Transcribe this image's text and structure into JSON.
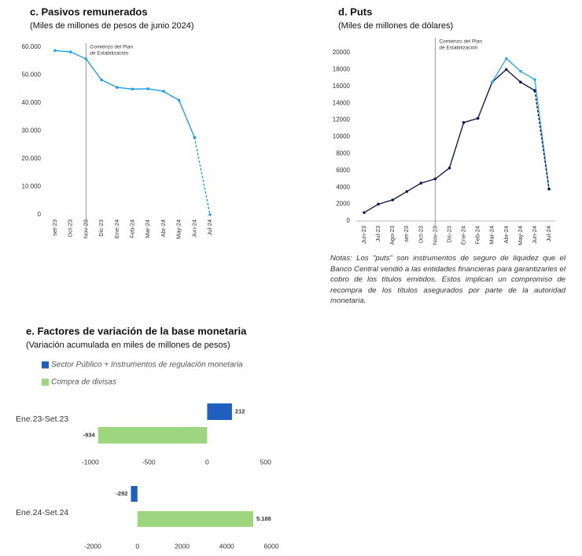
{
  "chart_data": [
    {
      "type": "line",
      "title": "c. Pasivos remunerados",
      "subtitle": "(Miles de millones de pesos de junio 2024)",
      "categories": [
        "set-23",
        "Oct-23",
        "Nov-23",
        "Dic-23",
        "Ene-24",
        "Feb-24",
        "Mar-24",
        "Abr-24",
        "May-24",
        "Jun-24",
        "Jul-24"
      ],
      "series": [
        {
          "color": "#1ea0e6",
          "values": [
            58800,
            58300,
            55800,
            48300,
            45600,
            45000,
            45100,
            44200,
            41000,
            27700,
            null
          ]
        },
        {
          "color": "#1ea0e6",
          "dashed": true,
          "values": [
            null,
            null,
            null,
            null,
            null,
            null,
            null,
            null,
            null,
            27700,
            0
          ]
        }
      ],
      "ylim": [
        0,
        60000
      ],
      "yticks": [
        {
          "value": 60000,
          "label": "60.000"
        },
        {
          "value": 50000,
          "label": "50.000"
        },
        {
          "value": 40000,
          "label": "40.000"
        },
        {
          "value": 30000,
          "label": "30.000"
        },
        {
          "value": 20000,
          "label": "20.000"
        },
        {
          "value": 10000,
          "label": "10.000"
        },
        0
      ],
      "annotation": {
        "at": "Nov-23",
        "lines": [
          "Comienzo del Plan",
          "de Estabilización"
        ]
      }
    },
    {
      "type": "line",
      "title": "d. Puts",
      "subtitle": "(Miles de millones de dólares)",
      "categories": [
        "Jun-23",
        "Jul-23",
        "Ago-23",
        "set-23",
        "Oct-23",
        "Nov-23",
        "Dic-23",
        "Ene-24",
        "Feb-24",
        "Mar-24",
        "Abr-24",
        "May-24",
        "Jun-24",
        "Jul-24"
      ],
      "series": [
        {
          "color": "#141a4a",
          "values": [
            1000,
            2000,
            2500,
            3500,
            4500,
            5000,
            6300,
            11700,
            12200,
            16500,
            18000,
            16500,
            15500,
            null
          ]
        },
        {
          "color": "#35a8e8",
          "values": [
            null,
            null,
            null,
            null,
            null,
            null,
            null,
            null,
            null,
            16500,
            19300,
            17800,
            16800,
            3800
          ]
        },
        {
          "color": "#141a4a",
          "dashed": true,
          "values": [
            null,
            null,
            null,
            null,
            null,
            null,
            null,
            null,
            null,
            null,
            null,
            null,
            15500,
            3800
          ]
        }
      ],
      "ylim": [
        0,
        20000
      ],
      "yticks": [
        20000,
        18000,
        16000,
        14000,
        12000,
        10000,
        8000,
        6000,
        4000,
        2000,
        0
      ],
      "annotation": {
        "at": "Nov-23",
        "lines": [
          "Comienzo del Plan",
          "de Estabilización"
        ]
      },
      "note": "Notas: Los \"puts\" son instrumentos de seguro de liquidez que el Banco Central vendió a las entidades financieras para garantizarles el cobro de los títulos emitidos. Estos implican un compromiso de recompra de los títulos asegurados por parte de la autoridad monetaria."
    },
    {
      "type": "hbar",
      "title": "e. Factores de variación de la base monetaria",
      "subtitle": "(Variación acumulada en miles de millones de pesos)",
      "categories": [
        "Ene.23-Set.23"
      ],
      "series": [
        {
          "name": "Sector Público + Instrumentos de regulación monetaria",
          "color": "#1f5fbf",
          "values": [
            212
          ]
        },
        {
          "name": "Compra de divisas",
          "color": "#9dd67f",
          "values": [
            -934
          ]
        }
      ],
      "xlim": [
        -1100,
        650
      ],
      "xticks": [
        -1000,
        -500,
        0,
        500
      ]
    },
    {
      "type": "hbar",
      "categories": [
        "Ene.24-Set.24"
      ],
      "series": [
        {
          "color": "#1f5fbf",
          "values": [
            -292
          ]
        },
        {
          "color": "#9dd67f",
          "values": [
            5188
          ],
          "value_labels": [
            "5.188"
          ]
        }
      ],
      "xlim": [
        -2000,
        6000
      ],
      "xticks": [
        -2000,
        0,
        2000,
        4000,
        6000
      ]
    }
  ]
}
